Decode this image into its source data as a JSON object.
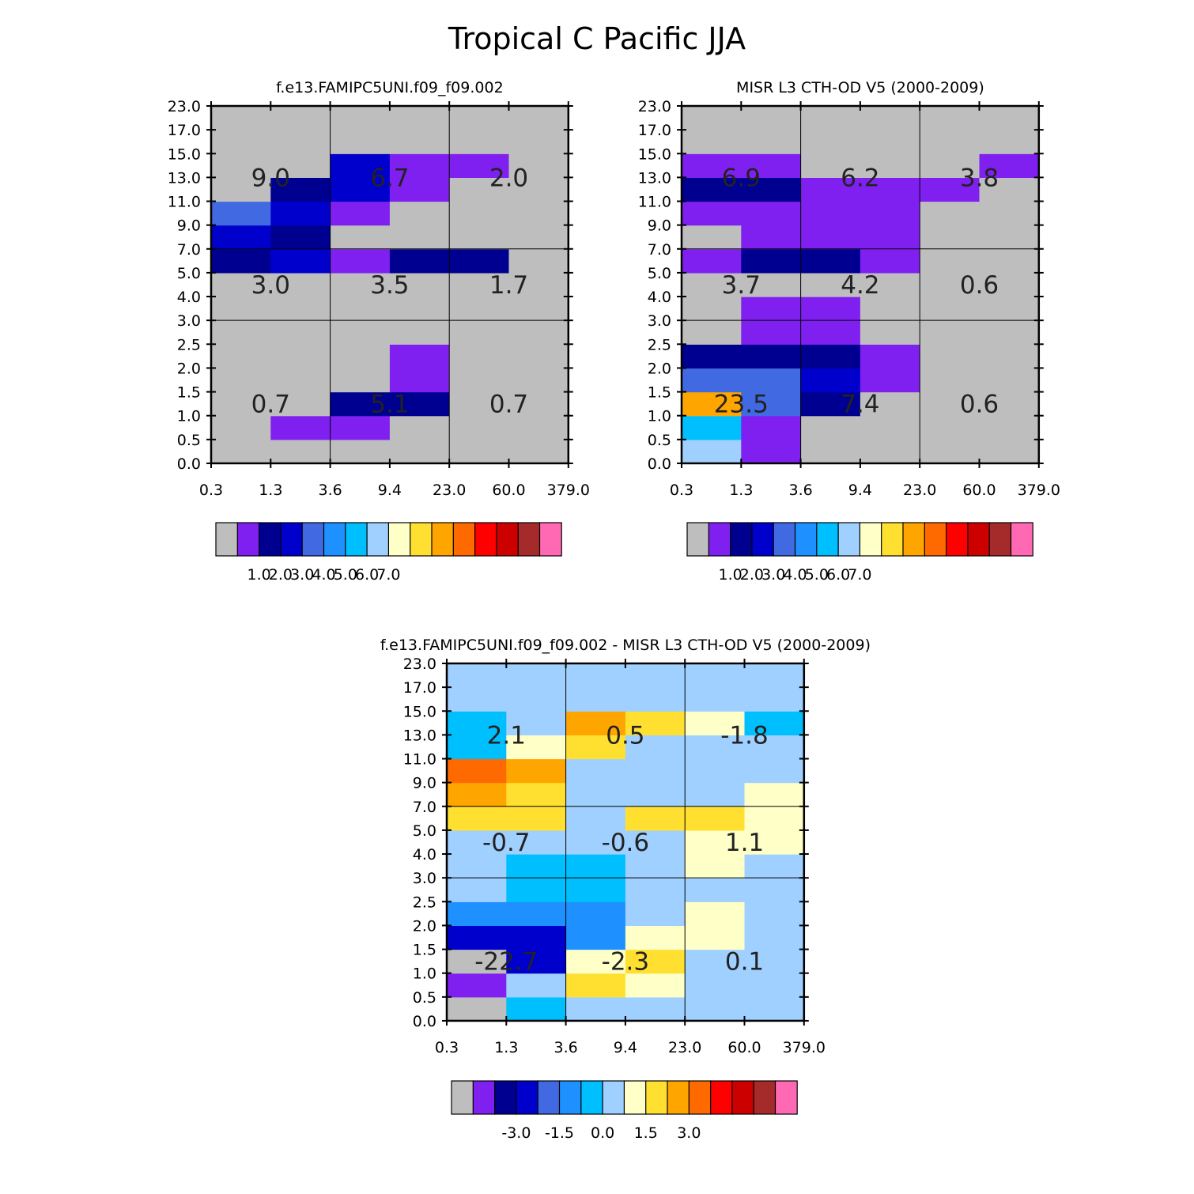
{
  "title": "Tropical C Pacific JJA",
  "tau_labels": [
    "0.3",
    "1.3",
    "3.6",
    "9.4",
    "23.0",
    "60.0",
    "379.0"
  ],
  "cth_labels": [
    "0.0",
    "0.5",
    "1.0",
    "1.5",
    "2.0",
    "2.5",
    "3.0",
    "4.0",
    "5.0",
    "7.0",
    "9.0",
    "11.0",
    "13.0",
    "15.0",
    "17.0",
    "23.0"
  ],
  "palette": [
    "#bebebe",
    "#8020f0",
    "#000090",
    "#0000cd",
    "#4169e1",
    "#1e90ff",
    "#00bfff",
    "#a0d0ff",
    "#ffffc8",
    "#ffe030",
    "#ffa500",
    "#ff6a00",
    "#ff0000",
    "#cd0000",
    "#a52a2a",
    "#ff69b4"
  ],
  "chart_data": [
    {
      "type": "heatmap",
      "title": "f.e13.FAMIPC5UNI.f09_f09.002",
      "xlabel": "",
      "ylabel": "",
      "colorbar_labels": [
        "1.0",
        "2.0",
        "3.0",
        "4.0",
        "5.0",
        "6.0",
        "7.0"
      ],
      "sums": [
        [
          "0.7",
          "5.1",
          "0.7"
        ],
        [
          "3.0",
          "3.5",
          "1.7"
        ],
        [
          "9.0",
          "6.7",
          "2.0"
        ]
      ],
      "colors": [
        [
          0,
          0,
          0,
          0,
          0,
          0
        ],
        [
          0,
          1,
          1,
          0,
          0,
          0
        ],
        [
          0,
          0,
          2,
          2,
          0,
          0
        ],
        [
          0,
          0,
          0,
          1,
          0,
          0
        ],
        [
          0,
          0,
          0,
          1,
          0,
          0
        ],
        [
          0,
          0,
          0,
          0,
          0,
          0
        ],
        [
          0,
          0,
          0,
          0,
          0,
          0
        ],
        [
          0,
          0,
          0,
          0,
          0,
          0
        ],
        [
          2,
          3,
          1,
          2,
          2,
          0
        ],
        [
          3,
          2,
          0,
          0,
          0,
          0
        ],
        [
          4,
          3,
          1,
          0,
          0,
          0
        ],
        [
          0,
          2,
          3,
          1,
          0,
          0
        ],
        [
          0,
          0,
          3,
          1,
          1,
          0
        ],
        [
          0,
          0,
          0,
          0,
          0,
          0
        ],
        [
          0,
          0,
          0,
          0,
          0,
          0
        ]
      ]
    },
    {
      "type": "heatmap",
      "title": "MISR L3 CTH-OD V5 (2000-2009)",
      "xlabel": "",
      "ylabel": "",
      "colorbar_labels": [
        "1.0",
        "2.0",
        "3.0",
        "4.0",
        "5.0",
        "6.0",
        "7.0"
      ],
      "sums": [
        [
          "23.5",
          "7.4",
          "0.6"
        ],
        [
          "3.7",
          "4.2",
          "0.6"
        ],
        [
          "6.9",
          "6.2",
          "3.8"
        ]
      ],
      "colors": [
        [
          7,
          1,
          0,
          0,
          0,
          0
        ],
        [
          6,
          1,
          0,
          0,
          0,
          0
        ],
        [
          10,
          4,
          2,
          0,
          0,
          0
        ],
        [
          4,
          4,
          3,
          1,
          0,
          0
        ],
        [
          2,
          2,
          2,
          1,
          0,
          0
        ],
        [
          0,
          1,
          1,
          0,
          0,
          0
        ],
        [
          0,
          1,
          1,
          0,
          0,
          0
        ],
        [
          0,
          0,
          0,
          0,
          0,
          0
        ],
        [
          1,
          2,
          2,
          1,
          0,
          0
        ],
        [
          0,
          1,
          1,
          1,
          0,
          0
        ],
        [
          1,
          1,
          1,
          1,
          0,
          0
        ],
        [
          2,
          2,
          1,
          1,
          1,
          0
        ],
        [
          1,
          1,
          0,
          0,
          0,
          1
        ],
        [
          0,
          0,
          0,
          0,
          0,
          0
        ],
        [
          0,
          0,
          0,
          0,
          0,
          0
        ]
      ]
    },
    {
      "type": "heatmap",
      "title": "f.e13.FAMIPC5UNI.f09_f09.002 - MISR L3 CTH-OD V5 (2000-2009)",
      "xlabel": "",
      "ylabel": "",
      "colorbar_labels": [
        "-3.0",
        "-1.5",
        "0.0",
        "1.5",
        "3.0"
      ],
      "sums": [
        [
          "-22.7",
          "-2.3",
          "0.1"
        ],
        [
          "-0.7",
          "-0.6",
          "1.1"
        ],
        [
          "2.1",
          "0.5",
          "-1.8"
        ]
      ],
      "colors": [
        [
          0,
          6,
          7,
          7,
          7,
          7
        ],
        [
          1,
          7,
          9,
          8,
          7,
          7
        ],
        [
          0,
          3,
          8,
          9,
          7,
          7
        ],
        [
          3,
          3,
          5,
          8,
          8,
          7
        ],
        [
          5,
          5,
          5,
          7,
          8,
          7
        ],
        [
          7,
          6,
          6,
          7,
          7,
          7
        ],
        [
          7,
          6,
          6,
          7,
          8,
          7
        ],
        [
          7,
          7,
          7,
          7,
          8,
          8
        ],
        [
          9,
          9,
          7,
          9,
          9,
          8
        ],
        [
          10,
          9,
          7,
          7,
          7,
          8
        ],
        [
          11,
          10,
          7,
          7,
          7,
          7
        ],
        [
          6,
          8,
          9,
          7,
          7,
          7
        ],
        [
          6,
          7,
          10,
          9,
          8,
          6
        ],
        [
          7,
          7,
          7,
          7,
          7,
          7
        ],
        [
          7,
          7,
          7,
          7,
          7,
          7
        ]
      ]
    }
  ]
}
